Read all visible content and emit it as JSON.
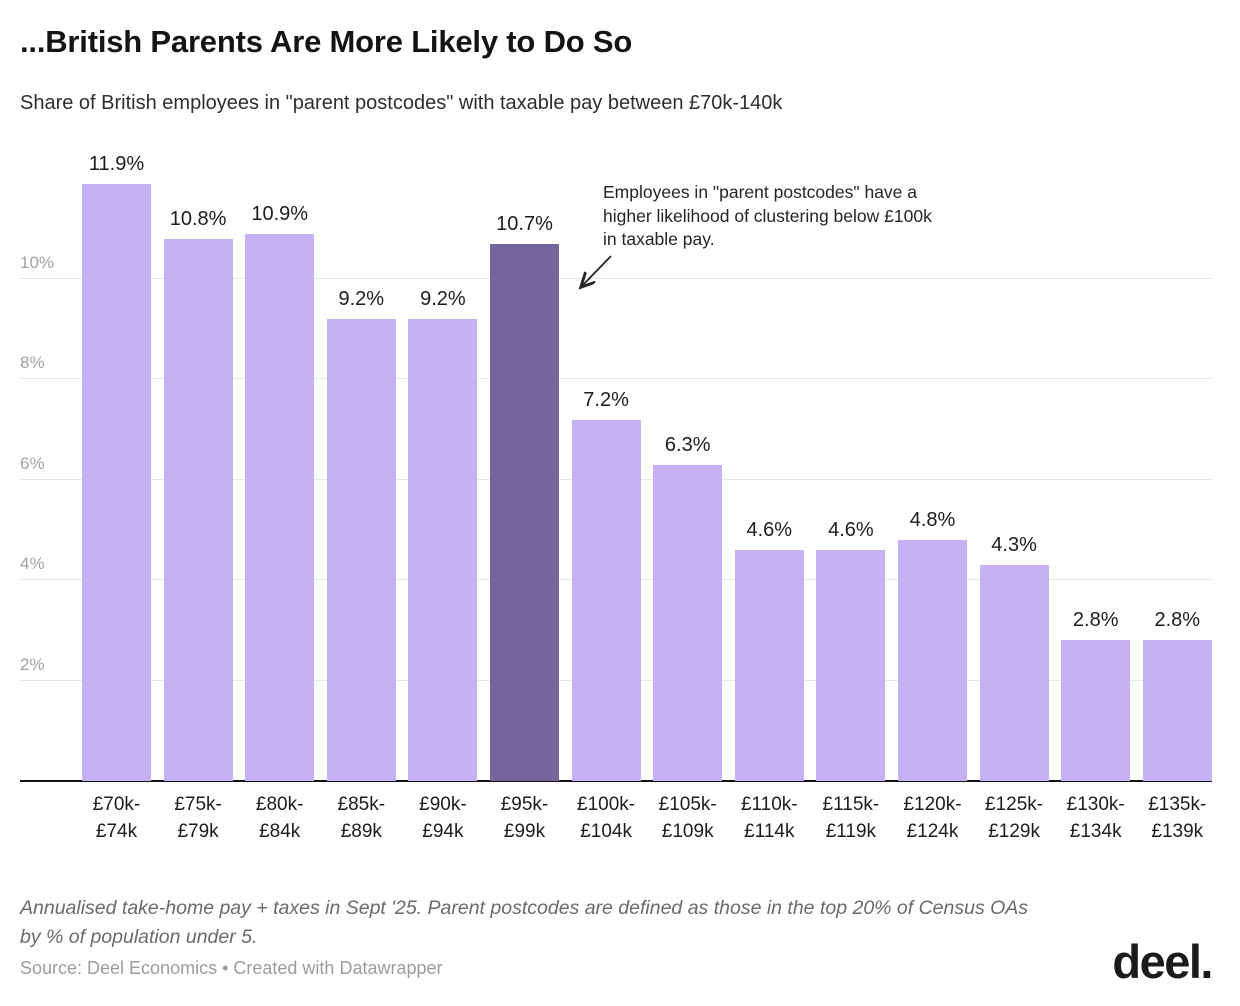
{
  "header": {
    "title": "...British Parents Are More Likely to Do So",
    "subtitle": "Share of British employees in \"parent postcodes\" with taxable pay between £70k-140k"
  },
  "chart_data": {
    "type": "bar",
    "title": "...British Parents Are More Likely to Do So",
    "subtitle": "Share of British employees in \"parent postcodes\" with taxable pay between £70k-140k",
    "categories": [
      "£70k-£74k",
      "£75k-£79k",
      "£80k-£84k",
      "£85k-£89k",
      "£90k-£94k",
      "£95k-£99k",
      "£100k-£104k",
      "£105k-£109k",
      "£110k-£114k",
      "£115k-£119k",
      "£120k-£124k",
      "£125k-£129k",
      "£130k-£134k",
      "£135k-£139k"
    ],
    "values": [
      11.9,
      10.8,
      10.9,
      9.2,
      9.2,
      10.7,
      7.2,
      6.3,
      4.6,
      4.6,
      4.8,
      4.3,
      2.8,
      2.8
    ],
    "value_labels": [
      "11.9%",
      "10.8%",
      "10.9%",
      "9.2%",
      "9.2%",
      "10.7%",
      "7.2%",
      "6.3%",
      "4.6%",
      "4.6%",
      "4.8%",
      "4.3%",
      "2.8%",
      "2.8%"
    ],
    "highlight_index": 5,
    "highlighted_category": "£95k-£99k",
    "y_ticks": [
      {
        "value": 2,
        "label": "2%"
      },
      {
        "value": 4,
        "label": "4%"
      },
      {
        "value": 6,
        "label": "6%"
      },
      {
        "value": 8,
        "label": "8%"
      },
      {
        "value": 10,
        "label": "10%"
      }
    ],
    "ylim": [
      0,
      12.8
    ],
    "grid": "horizontal",
    "legend": "none",
    "colors": {
      "bar": "#c5b1f3",
      "highlight_bar": "#74659d",
      "grid": "#e8e8e8",
      "axis_line": "#131313",
      "tick_label": "#a2a2a2"
    },
    "annotation": {
      "lines": [
        "Employees in \"parent postcodes\" have a",
        "higher likelihood of clustering below £100k",
        "in taxable pay."
      ],
      "arrow_target": "£95k-£99k bar"
    }
  },
  "footer": {
    "note_lines": [
      "Annualised take-home pay + taxes in Sept '25. Parent postcodes are defined as those in the top 20% of Census OAs",
      "by % of population under 5."
    ],
    "source": "Source: Deel Economics • Created with Datawrapper",
    "logo": "deel."
  }
}
